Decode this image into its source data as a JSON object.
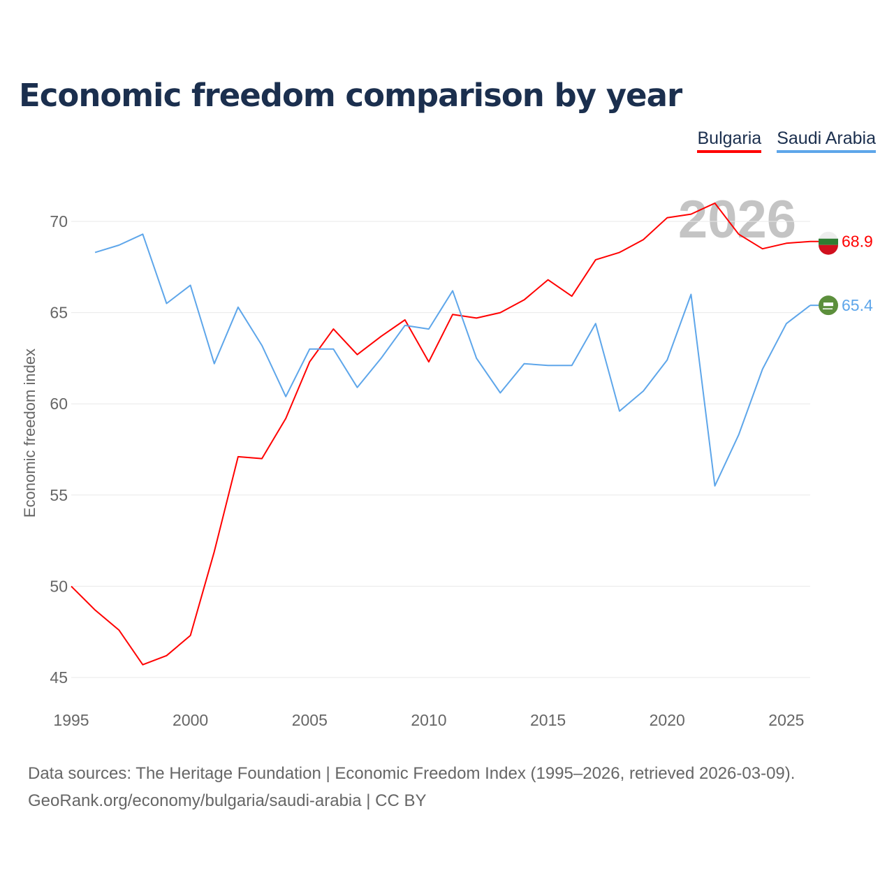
{
  "chart_data": {
    "type": "line",
    "title": "Economic freedom comparison by year",
    "xlabel": "",
    "ylabel": "Economic freedom index",
    "xlim": [
      1995,
      2026
    ],
    "ylim": [
      45,
      72
    ],
    "yticks": [
      45,
      50,
      55,
      60,
      65,
      70
    ],
    "xticks": [
      1995,
      2000,
      2005,
      2010,
      2015,
      2020,
      2025
    ],
    "grid": true,
    "legend_position": "top-right",
    "watermark_year": "2026",
    "x": [
      1995,
      1996,
      1997,
      1998,
      1999,
      2000,
      2001,
      2002,
      2003,
      2004,
      2005,
      2006,
      2007,
      2008,
      2009,
      2010,
      2011,
      2012,
      2013,
      2014,
      2015,
      2016,
      2017,
      2018,
      2019,
      2020,
      2021,
      2022,
      2023,
      2024,
      2025,
      2026
    ],
    "series": [
      {
        "name": "Bulgaria",
        "color": "#ff0000",
        "end_label": "68.9",
        "values": [
          50.0,
          48.7,
          47.6,
          45.7,
          46.2,
          47.3,
          51.9,
          57.1,
          57.0,
          59.2,
          62.3,
          64.1,
          62.7,
          63.7,
          64.6,
          62.3,
          64.9,
          64.7,
          65.0,
          65.7,
          66.8,
          65.9,
          67.9,
          68.3,
          69.0,
          70.2,
          70.4,
          71.0,
          69.3,
          68.5,
          68.8,
          68.9
        ]
      },
      {
        "name": "Saudi Arabia",
        "color": "#5ea6ea",
        "end_label": "65.4",
        "values": [
          null,
          68.3,
          68.7,
          69.3,
          65.5,
          66.5,
          62.2,
          65.3,
          63.2,
          60.4,
          63.0,
          63.0,
          60.9,
          62.5,
          64.3,
          64.1,
          66.2,
          62.5,
          60.6,
          62.2,
          62.1,
          62.1,
          64.4,
          59.6,
          60.7,
          62.4,
          66.0,
          55.5,
          58.3,
          61.9,
          64.4,
          65.4
        ]
      }
    ]
  },
  "footer": {
    "line1": "Data sources: The Heritage Foundation | Economic Freedom Index (1995–2026, retrieved 2026-03-09).",
    "line2": "GeoRank.org/economy/bulgaria/saudi-arabia | CC BY"
  }
}
